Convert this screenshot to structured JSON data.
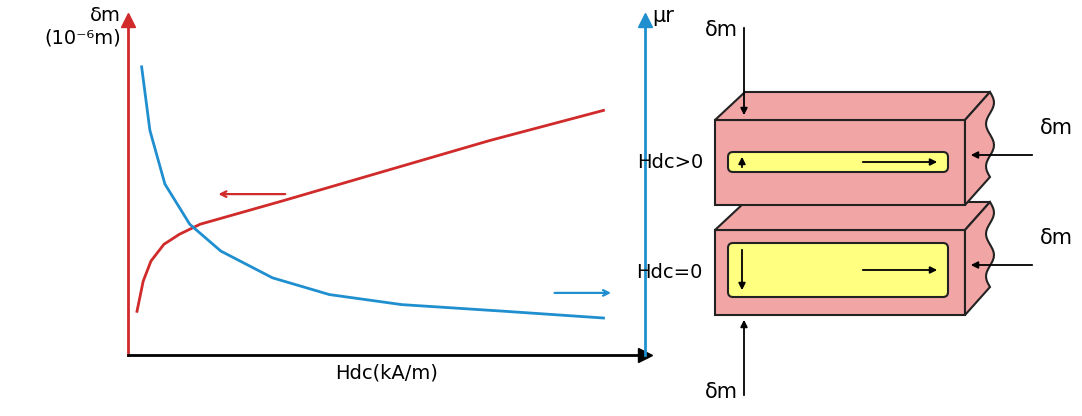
{
  "chart_data": {
    "type": "line",
    "ylabel": "δm\n(10⁻⁶m)",
    "y2label": "μr",
    "xlabel": "Hdc(kA/m)",
    "xlim": [
      0,
      10
    ],
    "xticks": [],
    "ylim": [
      0,
      10
    ],
    "yticks": [],
    "y2lim": [
      0,
      10
    ],
    "y2ticks": [],
    "tick_labels": false,
    "series": [
      {
        "color": "#d02a2a",
        "x": [
          0.18,
          0.3,
          0.45,
          0.7,
          1.0,
          1.4,
          3.0,
          5.0,
          7.0,
          9.2
        ],
        "values": [
          1.3,
          2.2,
          2.8,
          3.3,
          3.6,
          3.9,
          4.6,
          5.5,
          6.4,
          7.3
        ]
      },
      {
        "color": "#1f8fcf",
        "axis": "y2",
        "x": [
          0.27,
          0.43,
          0.72,
          1.2,
          1.8,
          2.8,
          3.9,
          5.3,
          7.3,
          9.2
        ],
        "values": [
          8.6,
          6.7,
          5.1,
          3.9,
          3.1,
          2.3,
          1.8,
          1.5,
          1.3,
          1.1
        ]
      }
    ]
  },
  "diagram": {
    "blocks": [
      {
        "label": "Hdc>0",
        "thickness_label": "δm",
        "width_label": "δm"
      },
      {
        "label": "Hdc=0",
        "thickness_label": "δm",
        "width_label": "δm"
      }
    ]
  }
}
